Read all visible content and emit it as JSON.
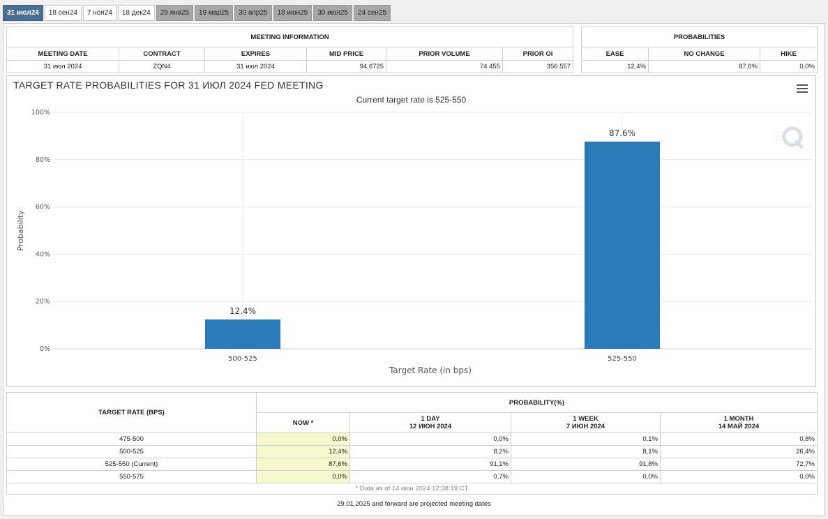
{
  "tabs": [
    "31 июл24",
    "18 сен24",
    "7 ноя24",
    "18 дек24",
    "29 янв25",
    "19 мар25",
    "30 апр25",
    "18 июн25",
    "30 июл25",
    "24 сен25"
  ],
  "meeting": {
    "title": "MEETING INFORMATION",
    "headers": [
      "MEETING DATE",
      "CONTRACT",
      "EXPIRES",
      "MID PRICE",
      "PRIOR VOLUME",
      "PRIOR OI"
    ],
    "row": [
      "31 июл 2024",
      "ZQN4",
      "31 июл 2024",
      "94,6725",
      "74 455",
      "356 557"
    ]
  },
  "probabilities": {
    "title": "PROBABILITIES",
    "headers": [
      "EASE",
      "NO CHANGE",
      "HIKE"
    ],
    "row": [
      "12,4%",
      "87,6%",
      "0,0%"
    ]
  },
  "chart_data": {
    "type": "bar",
    "title": "TARGET RATE PROBABILITIES FOR 31 ИЮЛ 2024 FED MEETING",
    "subtitle": "Current target rate is 525-550",
    "categories": [
      "500-525",
      "525-550"
    ],
    "values": [
      12.4,
      87.6
    ],
    "data_labels": [
      "12.4%",
      "87.6%"
    ],
    "xlabel": "Target Rate (in bps)",
    "ylabel": "Probability",
    "yticks": [
      "0%",
      "20%",
      "40%",
      "60%",
      "80%",
      "100%"
    ],
    "ylim": [
      0,
      100
    ],
    "bar_color": "#2b7bb9",
    "grid": true
  },
  "bottom": {
    "col1_header": "TARGET RATE (BPS)",
    "group_header": "PROBABILITY(%)",
    "now_header": "NOW *",
    "col_headers": [
      {
        "line1": "1 DAY",
        "line2": "12 ИЮН 2024"
      },
      {
        "line1": "1 WEEK",
        "line2": "7 ИЮН 2024"
      },
      {
        "line1": "1 MONTH",
        "line2": "14 МАЙ 2024"
      }
    ],
    "rows": [
      [
        "475-500",
        "0,0%",
        "0,0%",
        "0,1%",
        "0,8%"
      ],
      [
        "500-525",
        "12,4%",
        "8,2%",
        "8,1%",
        "26,4%"
      ],
      [
        "525-550 (Current)",
        "87,6%",
        "91,1%",
        "91,8%",
        "72,7%"
      ],
      [
        "550-575",
        "0,0%",
        "0,7%",
        "0,0%",
        "0,0%"
      ]
    ],
    "note": "* Data as of 14 июн 2024 12:38:19 CT"
  },
  "footer": "29.01.2025 and forward are projected meeting dates",
  "icons": {
    "menu": "hamburger-menu-icon"
  }
}
